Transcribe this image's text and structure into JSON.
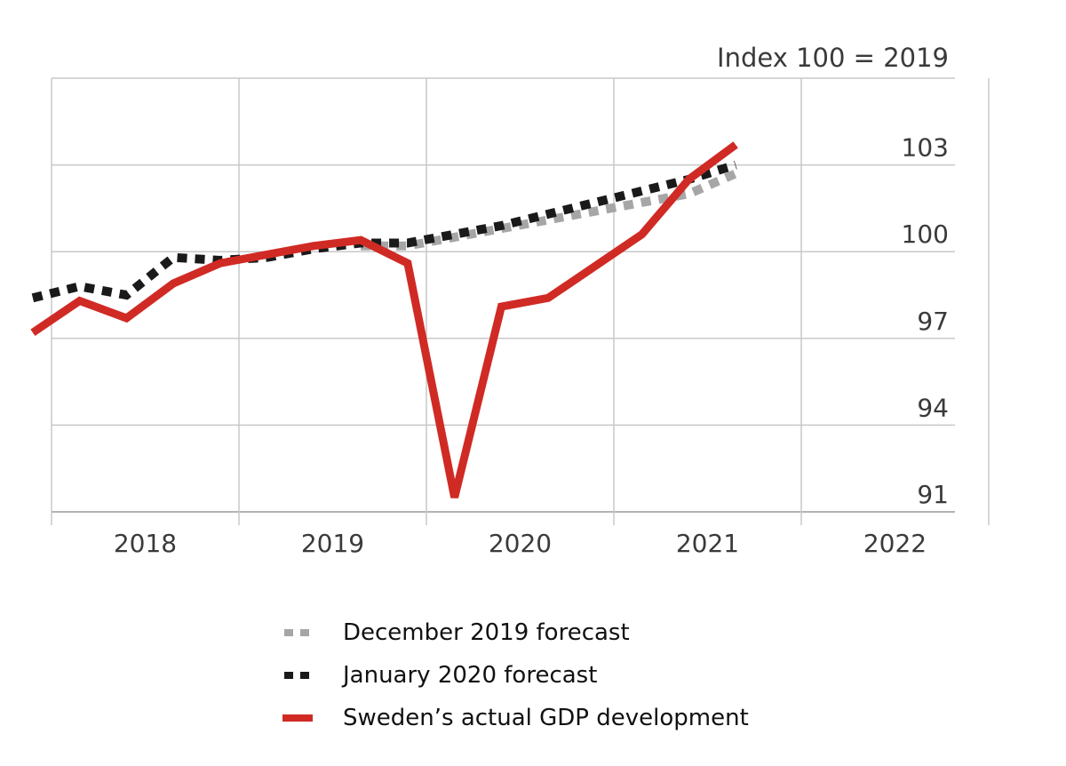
{
  "chart_data": {
    "type": "line",
    "unit_note": "Index 100 = 2019",
    "x_ticks": [
      "2018",
      "2019",
      "2020",
      "2021",
      "2022"
    ],
    "y_ticks": [
      91,
      94,
      97,
      100,
      103
    ],
    "ylim": [
      91,
      106
    ],
    "xlim": [
      2018,
      2023
    ],
    "grid": true,
    "y_axis_side": "right",
    "legend_position": "bottom",
    "series": [
      {
        "name": "December 2019 forecast",
        "style": "dotted",
        "color": "#a6a6a6",
        "x": [
          2019.75,
          2020.0,
          2020.25,
          2020.5,
          2020.75,
          2021.0,
          2021.25,
          2021.5,
          2021.75
        ],
        "y": [
          100.2,
          100.2,
          100.5,
          100.8,
          101.1,
          101.4,
          101.7,
          102.0,
          102.7
        ]
      },
      {
        "name": "January 2020 forecast",
        "style": "dotted",
        "color": "#1a1a1a",
        "x": [
          2018.0,
          2018.25,
          2018.5,
          2018.75,
          2019.0,
          2019.25,
          2019.5,
          2019.75,
          2020.0,
          2020.25,
          2020.5,
          2020.75,
          2021.0,
          2021.25,
          2021.5,
          2021.75
        ],
        "y": [
          98.4,
          98.8,
          98.5,
          99.8,
          99.7,
          99.8,
          100.1,
          100.3,
          100.3,
          100.6,
          100.9,
          101.3,
          101.7,
          102.1,
          102.5,
          103.0
        ]
      },
      {
        "name": "Sweden’s actual GDP development",
        "style": "solid",
        "color": "#d02a24",
        "x": [
          2018.0,
          2018.25,
          2018.5,
          2018.75,
          2019.0,
          2019.25,
          2019.5,
          2019.75,
          2020.0,
          2020.25,
          2020.5,
          2020.75,
          2021.0,
          2021.25,
          2021.5,
          2021.75,
          2022.0
        ],
        "y": [
          97.2,
          98.3,
          97.7,
          98.9,
          99.6,
          99.9,
          100.2,
          100.4,
          99.6,
          91.5,
          98.1,
          98.4,
          99.5,
          100.6,
          102.5,
          103.7,
          null
        ]
      }
    ]
  },
  "legend": {
    "items": [
      {
        "label": "December 2019 forecast",
        "color": "#a6a6a6",
        "style": "dotted"
      },
      {
        "label": "January 2020 forecast",
        "color": "#1a1a1a",
        "style": "dotted"
      },
      {
        "label": "Sweden’s actual GDP development",
        "color": "#d02a24",
        "style": "solid"
      }
    ]
  }
}
